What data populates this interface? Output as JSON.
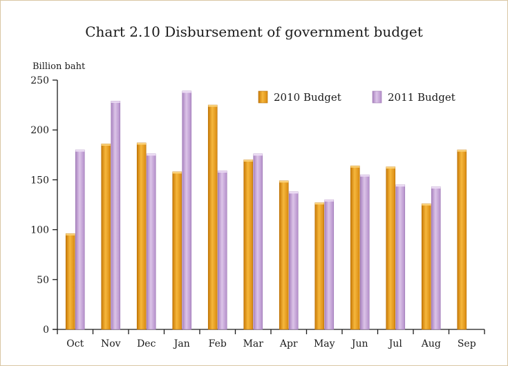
{
  "chart_data": {
    "type": "bar",
    "title": "Chart 2.10  Disbursement of government budget",
    "ylabel": "Billion baht",
    "xlabel": "",
    "ylim": [
      0,
      250
    ],
    "yticks": [
      0,
      50,
      100,
      150,
      200,
      250
    ],
    "categories": [
      "Oct",
      "Nov",
      "Dec",
      "Jan",
      "Feb",
      "Mar",
      "Apr",
      "May",
      "Jun",
      "Jul",
      "Aug",
      "Sep"
    ],
    "series": [
      {
        "name": "2010 Budget",
        "color": "#f0a21c",
        "values": [
          96,
          186,
          187,
          158,
          225,
          170,
          149,
          127,
          164,
          163,
          126,
          180
        ]
      },
      {
        "name": "2011 Budget",
        "color": "#c7a6d8",
        "values": [
          180,
          229,
          176,
          239,
          159,
          176,
          138,
          130,
          155,
          145,
          143,
          null
        ]
      }
    ],
    "legend_position": "top-right",
    "grid": false
  }
}
